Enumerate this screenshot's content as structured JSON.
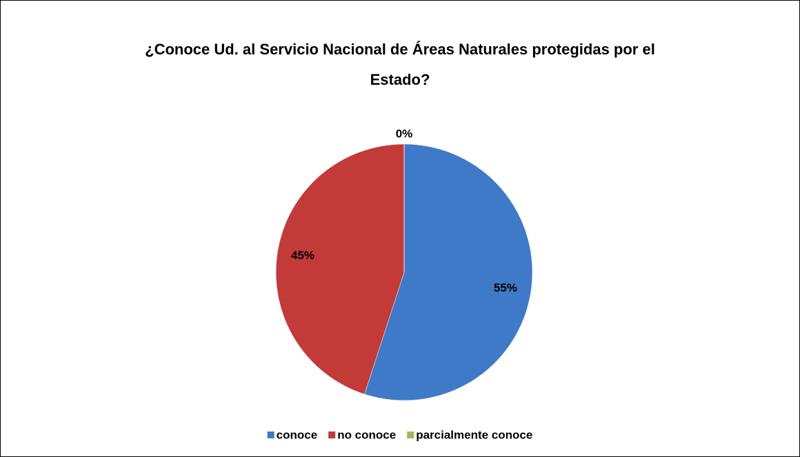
{
  "chart_data": {
    "type": "pie",
    "title": "¿Conoce Ud. al Servicio Nacional de Áreas Naturales protegidas por el Estado?",
    "categories": [
      "conoce",
      "no conoce",
      "parcialmente conoce"
    ],
    "values": [
      55,
      45,
      0
    ],
    "value_labels": [
      "55%",
      "45%",
      "0%"
    ],
    "colors": [
      "#3f7ac9",
      "#c23b39",
      "#9bbb59"
    ],
    "legend": "bottom"
  }
}
